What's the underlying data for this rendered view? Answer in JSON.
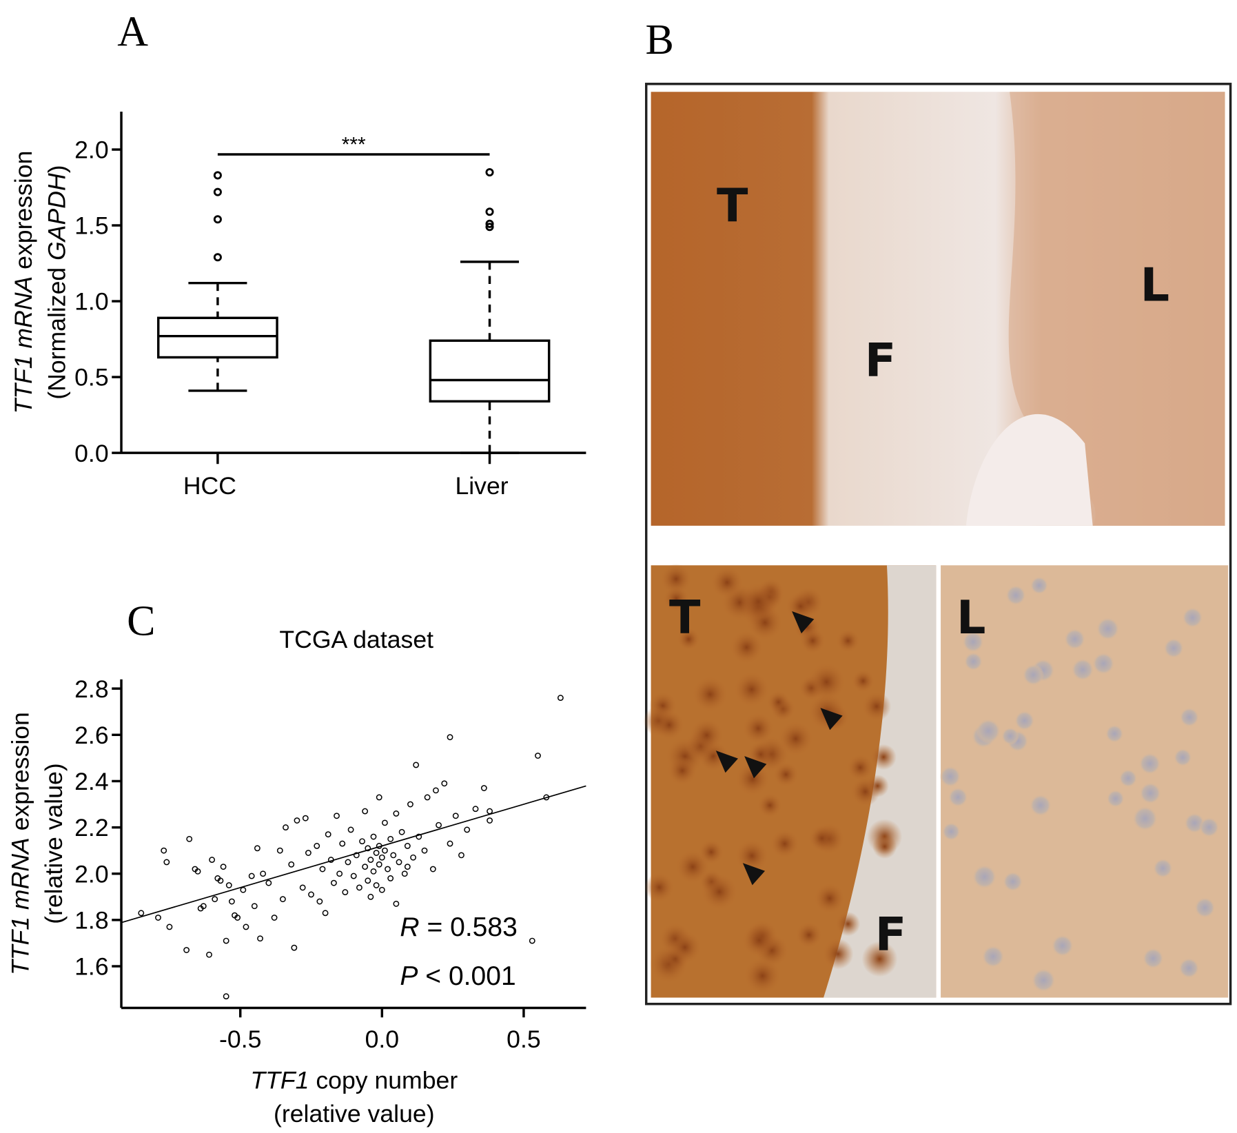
{
  "chart_data": [
    {
      "type": "box",
      "panel": "A",
      "categories": [
        "HCC",
        "Liver"
      ],
      "ylabel_lines": [
        [
          {
            "text": "TTF1 mRNA",
            "italic": true
          },
          {
            "text": " expression"
          }
        ],
        [
          {
            "text": "(Normalized "
          },
          {
            "text": "GAPDH",
            "italic": true
          },
          {
            "text": ")"
          }
        ]
      ],
      "boxes": [
        {
          "low": 0.41,
          "q1": 0.63,
          "median": 0.77,
          "q3": 0.89,
          "high": 1.12,
          "outliers": [
            1.29,
            1.54,
            1.72,
            1.83
          ]
        },
        {
          "low": 0.0,
          "q1": 0.34,
          "median": 0.48,
          "q3": 0.74,
          "high": 1.26,
          "outliers": [
            1.49,
            1.51,
            1.59,
            1.85
          ]
        }
      ],
      "significance": "***",
      "color": "#000000",
      "ylim": [
        0,
        2.25
      ],
      "yticks": [
        {
          "value": 0,
          "label": "0.0"
        },
        0.5,
        {
          "value": 1,
          "label": "1.0"
        },
        1.5,
        {
          "value": 2,
          "label": "2.0"
        }
      ]
    },
    {
      "type": "scatter",
      "panel": "C",
      "title": "TCGA dataset",
      "xlabel_lines": [
        [
          {
            "text": "TTF1",
            "italic": true
          },
          {
            "text": " copy number"
          }
        ],
        [
          {
            "text": "(relative value)"
          }
        ]
      ],
      "ylabel_lines": [
        [
          {
            "text": "TTF1 mRNA",
            "italic": true
          },
          {
            "text": " expression"
          }
        ],
        [
          {
            "text": "(relative value)"
          }
        ]
      ],
      "annotations": [
        [
          {
            "text": "R",
            "italic": true
          },
          {
            "text": " = 0.583"
          }
        ],
        [
          {
            "text": "P",
            "italic": true
          },
          {
            "text": " < 0.001"
          }
        ]
      ],
      "color": "#000000",
      "fit": {
        "slope": 0.36,
        "intercept": 2.12
      },
      "xlim": [
        -0.92,
        0.72
      ],
      "ylim": [
        1.42,
        2.84
      ],
      "xticks": [
        -0.5,
        {
          "value": 0,
          "label": "0.0"
        },
        0.5
      ],
      "yticks": [
        1.6,
        1.8,
        {
          "value": 2,
          "label": "2.0"
        },
        2.2,
        2.4,
        2.6,
        2.8
      ],
      "x": [
        -0.85,
        -0.79,
        -0.77,
        -0.76,
        -0.75,
        -0.69,
        -0.68,
        -0.66,
        -0.65,
        -0.64,
        -0.63,
        -0.61,
        -0.6,
        -0.59,
        -0.58,
        -0.57,
        -0.56,
        -0.55,
        -0.55,
        -0.54,
        -0.53,
        -0.52,
        -0.51,
        -0.49,
        -0.48,
        -0.46,
        -0.45,
        -0.43,
        -0.42,
        -0.4,
        -0.38,
        -0.36,
        -0.35,
        -0.34,
        -0.32,
        -0.31,
        -0.3,
        -0.28,
        -0.26,
        -0.25,
        -0.23,
        -0.22,
        -0.21,
        -0.19,
        -0.18,
        -0.17,
        -0.16,
        -0.15,
        -0.14,
        -0.13,
        -0.12,
        -0.11,
        -0.1,
        -0.09,
        -0.08,
        -0.07,
        -0.06,
        -0.06,
        -0.05,
        -0.05,
        -0.04,
        -0.04,
        -0.03,
        -0.03,
        -0.02,
        -0.02,
        -0.01,
        -0.01,
        0,
        0,
        0.01,
        0.01,
        0.02,
        0.03,
        0.03,
        0.04,
        0.05,
        0.06,
        0.07,
        0.08,
        0.09,
        0.1,
        0.11,
        0.12,
        0.13,
        0.15,
        0.16,
        0.18,
        0.2,
        0.22,
        0.24,
        0.24,
        0.26,
        0.28,
        0.3,
        0.33,
        0.36,
        0.38,
        0.38,
        0.55,
        0.53,
        0.58,
        0.63,
        -0.44,
        -0.27,
        -0.2,
        0.05,
        -0.01,
        0.09,
        0.19
      ],
      "y": [
        1.83,
        1.81,
        2.1,
        2.05,
        1.77,
        1.67,
        2.15,
        2.02,
        2.01,
        1.85,
        1.86,
        1.65,
        2.06,
        1.89,
        1.98,
        1.97,
        2.03,
        1.47,
        1.71,
        1.95,
        1.88,
        1.82,
        1.81,
        1.93,
        1.77,
        1.99,
        1.86,
        1.72,
        2,
        1.96,
        1.81,
        2.1,
        1.89,
        2.2,
        2.04,
        1.68,
        2.23,
        1.94,
        2.09,
        1.91,
        2.12,
        1.88,
        2.02,
        2.17,
        2.06,
        1.96,
        2.25,
        2,
        2.13,
        1.92,
        2.05,
        2.19,
        1.99,
        2.08,
        1.94,
        2.14,
        2.03,
        2.27,
        1.97,
        2.11,
        2.06,
        1.9,
        2.16,
        2.01,
        2.09,
        1.95,
        2.12,
        2.04,
        2.07,
        1.93,
        2.22,
        2.1,
        2.02,
        2.15,
        1.98,
        2.08,
        2.26,
        2.05,
        2.18,
        2,
        2.12,
        2.3,
        2.07,
        2.47,
        2.16,
        2.1,
        2.33,
        2.02,
        2.21,
        2.39,
        2.59,
        2.13,
        2.25,
        2.08,
        2.19,
        2.28,
        2.37,
        2.27,
        2.23,
        2.51,
        1.71,
        2.33,
        2.76,
        2.11,
        2.24,
        1.83,
        1.87,
        2.33,
        2.03,
        2.36
      ]
    }
  ],
  "panel_b": {
    "panel": "B",
    "top_labels": [
      "T",
      "F",
      "L"
    ],
    "bottom_left_labels": [
      "T",
      "F"
    ],
    "bottom_right_labels": [
      "L"
    ]
  }
}
